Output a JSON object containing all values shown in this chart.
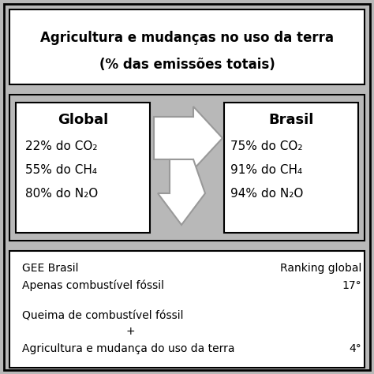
{
  "title_line1": "Agricultura e mudanças no uso da terra",
  "title_line2": "(% das emissões totais)",
  "bg_color": "#b8b8b8",
  "box_color": "#ffffff",
  "global_title": "Global",
  "global_lines": [
    "22% do CO₂",
    "55% do CH₄",
    "80% do N₂O"
  ],
  "brasil_title": "Brasil",
  "brasil_lines": [
    "75% do CO₂",
    "91% do CH₄",
    "94% do N₂O"
  ],
  "bottom_col1_line1": "GEE Brasil",
  "bottom_col1_line2": "Apenas combustível fóssil",
  "bottom_col1_line3": "Queima de combustível fóssil",
  "bottom_col1_line4": "+",
  "bottom_col1_line5": "Agricultura e mudança do uso da terra",
  "bottom_col2_line1": "Ranking global",
  "bottom_col2_line2": "17°",
  "bottom_col2_line3": "4°",
  "arrow_color": "#ffffff",
  "arrow_edge_color": "#999999",
  "figsize": [
    4.74,
    4.74
  ],
  "dpi": 100
}
